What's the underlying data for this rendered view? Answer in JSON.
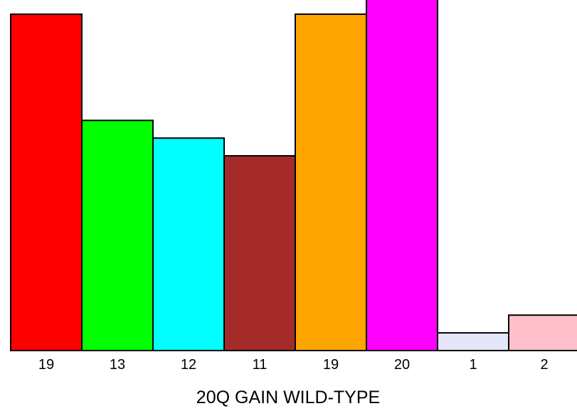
{
  "chart_data": {
    "type": "bar",
    "title": "",
    "xlabel": "20Q GAIN WILD-TYPE",
    "ylabel": "",
    "categories": [
      "19",
      "13",
      "12",
      "11",
      "19",
      "20",
      "1",
      "2"
    ],
    "values": [
      19,
      13,
      12,
      11,
      19,
      20,
      1,
      2
    ],
    "colors": [
      "#ff0000",
      "#00ff00",
      "#00ffff",
      "#a52a2a",
      "#ffa500",
      "#ff00ff",
      "#e6e6fa",
      "#ffc0cb"
    ],
    "ylim": [
      0,
      19.6
    ],
    "grid": false,
    "legend": "none"
  }
}
